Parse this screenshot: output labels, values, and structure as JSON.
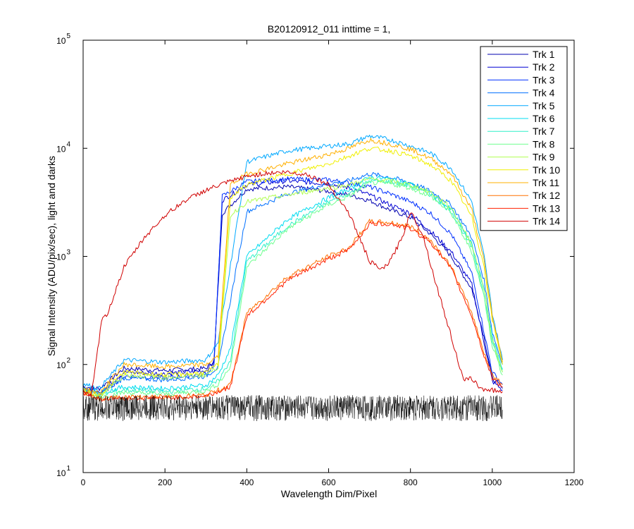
{
  "chart_data": {
    "type": "line",
    "title": "B20120912_011 inttime = 1,",
    "xlabel": "Wavelength Dim/Pixel",
    "ylabel": "Signal Intensity (ADU/pix/sec), light and darks",
    "xlim": [
      0,
      1200
    ],
    "ylim": [
      10,
      100000
    ],
    "yscale": "log",
    "x_ticks": [
      "0",
      "200",
      "400",
      "600",
      "800",
      "1000",
      "1200"
    ],
    "y_ticks": [
      {
        "base": "10",
        "exp": "1",
        "value": 10
      },
      {
        "base": "10",
        "exp": "2",
        "value": 100
      },
      {
        "base": "10",
        "exp": "3",
        "value": 1000
      },
      {
        "base": "10",
        "exp": "4",
        "value": 10000
      },
      {
        "base": "10",
        "exp": "5",
        "value": 100000
      }
    ],
    "grid": false,
    "legend_position": "top-right",
    "series": [
      {
        "name": "Trk 1",
        "color": "#0000b0",
        "x": [
          0,
          40,
          100,
          200,
          300,
          320,
          340,
          400,
          500,
          600,
          650,
          700,
          750,
          800,
          850,
          900,
          950,
          980,
          1000,
          1025
        ],
        "y": [
          62,
          60,
          92,
          88,
          92,
          110,
          2500,
          4200,
          4400,
          4000,
          3700,
          3300,
          2700,
          2300,
          1600,
          1000,
          500,
          180,
          75,
          60
        ]
      },
      {
        "name": "Trk 2",
        "color": "#0000d4",
        "x": [
          0,
          40,
          100,
          200,
          300,
          320,
          340,
          400,
          500,
          600,
          650,
          700,
          750,
          800,
          850,
          900,
          950,
          980,
          1000,
          1025
        ],
        "y": [
          62,
          55,
          85,
          82,
          88,
          105,
          3300,
          4600,
          5000,
          4700,
          4300,
          3700,
          3000,
          2500,
          1700,
          1100,
          550,
          160,
          70,
          58
        ]
      },
      {
        "name": "Trk 3",
        "color": "#0030ff",
        "x": [
          0,
          40,
          100,
          200,
          300,
          320,
          340,
          400,
          500,
          600,
          650,
          700,
          750,
          800,
          850,
          900,
          950,
          980,
          1000,
          1025
        ],
        "y": [
          60,
          52,
          78,
          75,
          82,
          98,
          3600,
          4900,
          5200,
          5100,
          4800,
          4400,
          3800,
          3200,
          2500,
          1600,
          700,
          200,
          85,
          65
        ]
      },
      {
        "name": "Trk 4",
        "color": "#0070ff",
        "x": [
          0,
          40,
          100,
          200,
          300,
          330,
          400,
          500,
          600,
          650,
          700,
          750,
          800,
          850,
          900,
          950,
          980,
          1000,
          1025
        ],
        "y": [
          58,
          54,
          75,
          72,
          78,
          95,
          2600,
          3800,
          4700,
          5000,
          5800,
          5400,
          4800,
          4000,
          3000,
          1500,
          600,
          200,
          100
        ]
      },
      {
        "name": "Trk 5",
        "color": "#00a8ff",
        "x": [
          0,
          40,
          100,
          200,
          300,
          330,
          400,
          500,
          600,
          650,
          700,
          750,
          800,
          850,
          900,
          950,
          980,
          1000,
          1025
        ],
        "y": [
          66,
          60,
          110,
          105,
          110,
          160,
          7500,
          9500,
          10500,
          11000,
          13000,
          12000,
          10500,
          9000,
          6500,
          3200,
          1000,
          300,
          110
        ]
      },
      {
        "name": "Trk 6",
        "color": "#00dcf0",
        "x": [
          0,
          40,
          100,
          200,
          300,
          330,
          360,
          400,
          500,
          600,
          650,
          700,
          750,
          800,
          850,
          900,
          950,
          980,
          1000,
          1025
        ],
        "y": [
          60,
          55,
          62,
          60,
          64,
          80,
          140,
          1000,
          2200,
          3500,
          4200,
          5400,
          5200,
          4700,
          3800,
          2700,
          1300,
          500,
          180,
          90
        ]
      },
      {
        "name": "Trk 7",
        "color": "#30f0c8",
        "x": [
          0,
          40,
          100,
          200,
          300,
          330,
          360,
          400,
          500,
          600,
          650,
          700,
          750,
          800,
          850,
          900,
          950,
          980,
          1000,
          1025
        ],
        "y": [
          58,
          52,
          58,
          56,
          60,
          70,
          110,
          900,
          1900,
          3200,
          3800,
          5000,
          4900,
          4500,
          3700,
          2600,
          1200,
          450,
          160,
          85
        ]
      },
      {
        "name": "Trk 8",
        "color": "#70ff90",
        "x": [
          0,
          40,
          100,
          200,
          300,
          330,
          360,
          400,
          500,
          600,
          650,
          700,
          750,
          800,
          850,
          900,
          950,
          980,
          1000,
          1025
        ],
        "y": [
          56,
          50,
          55,
          53,
          57,
          66,
          95,
          800,
          1800,
          3000,
          3600,
          4800,
          4700,
          4300,
          3600,
          2500,
          1100,
          420,
          150,
          80
        ]
      },
      {
        "name": "Trk 9",
        "color": "#b0ff50",
        "x": [
          0,
          40,
          100,
          200,
          300,
          330,
          360,
          400,
          500,
          600,
          650,
          700,
          750,
          800,
          850,
          900,
          950,
          980,
          1000,
          1025
        ],
        "y": [
          56,
          50,
          80,
          76,
          80,
          95,
          2400,
          3200,
          3700,
          4300,
          4600,
          5200,
          5000,
          4600,
          3900,
          2800,
          1300,
          500,
          170,
          85
        ]
      },
      {
        "name": "Trk 10",
        "color": "#f0f000",
        "x": [
          0,
          40,
          100,
          200,
          300,
          330,
          360,
          400,
          500,
          600,
          650,
          700,
          750,
          800,
          850,
          900,
          950,
          980,
          1000,
          1025
        ],
        "y": [
          58,
          52,
          85,
          80,
          84,
          100,
          3500,
          4600,
          5800,
          7200,
          8500,
          10000,
          9500,
          8500,
          7000,
          5000,
          2300,
          800,
          260,
          100
        ]
      },
      {
        "name": "Trk 11",
        "color": "#ffb000",
        "x": [
          0,
          40,
          100,
          200,
          300,
          330,
          360,
          400,
          500,
          600,
          650,
          700,
          750,
          800,
          850,
          900,
          950,
          980,
          1000,
          1025
        ],
        "y": [
          60,
          54,
          100,
          95,
          100,
          120,
          4600,
          5800,
          7200,
          8800,
          10000,
          12000,
          11000,
          9800,
          8000,
          5800,
          2700,
          900,
          280,
          105
        ]
      },
      {
        "name": "Trk 12",
        "color": "#ff7000",
        "x": [
          0,
          40,
          100,
          200,
          300,
          330,
          360,
          400,
          500,
          600,
          650,
          700,
          750,
          800,
          850,
          900,
          950,
          980,
          1000,
          1025
        ],
        "y": [
          56,
          48,
          50,
          50,
          52,
          58,
          65,
          300,
          650,
          1000,
          1200,
          2100,
          2050,
          1900,
          1400,
          800,
          300,
          130,
          80,
          65
        ]
      },
      {
        "name": "Trk 13",
        "color": "#ff2000",
        "x": [
          0,
          40,
          100,
          200,
          300,
          330,
          360,
          400,
          500,
          600,
          650,
          700,
          750,
          800,
          850,
          900,
          950,
          980,
          1000,
          1025
        ],
        "y": [
          55,
          48,
          49,
          49,
          51,
          56,
          62,
          280,
          600,
          950,
          1150,
          2000,
          2000,
          1800,
          1350,
          760,
          280,
          120,
          75,
          62
        ]
      },
      {
        "name": "Trk 14",
        "color": "#d00000",
        "x": [
          0,
          20,
          45,
          60,
          100,
          150,
          200,
          250,
          300,
          350,
          400,
          450,
          500,
          550,
          600,
          650,
          700,
          730,
          750,
          780,
          800,
          830,
          860,
          900,
          930,
          950,
          970,
          1000,
          1025
        ],
        "y": [
          58,
          50,
          250,
          300,
          800,
          1500,
          2400,
          3300,
          4100,
          4800,
          5500,
          5900,
          6000,
          5700,
          4600,
          2500,
          900,
          750,
          900,
          1500,
          2600,
          1600,
          600,
          180,
          70,
          75,
          60,
          58,
          56
        ]
      },
      {
        "name": "",
        "color": "#000000",
        "noise": true,
        "x": [
          0,
          1025
        ],
        "y": [
          30,
          52
        ]
      }
    ]
  }
}
